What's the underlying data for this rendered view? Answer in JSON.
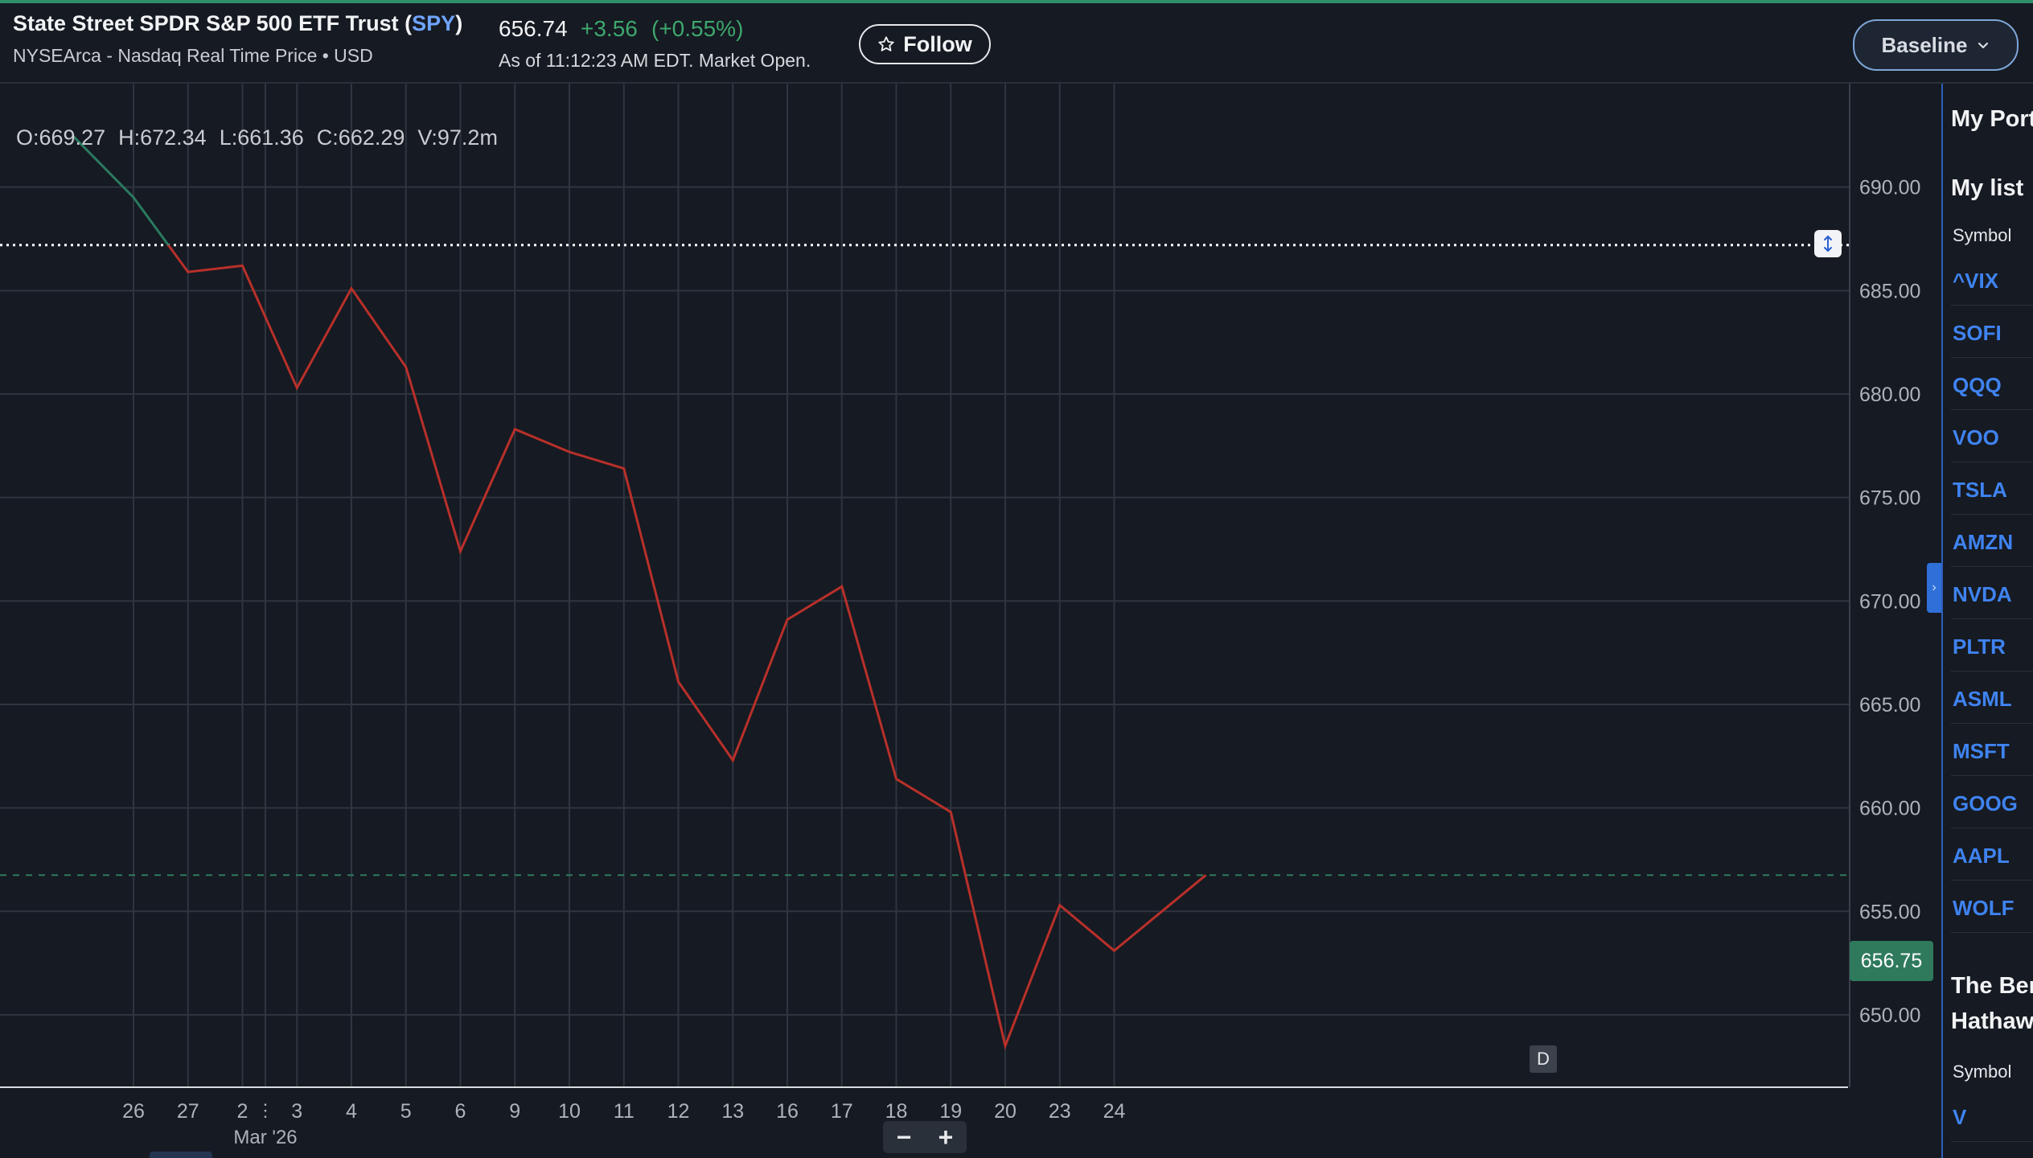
{
  "header": {
    "title_prefix": "State Street SPDR S&P 500 ETF Trust (",
    "symbol": "SPY",
    "title_suffix": ")",
    "subtitle": "NYSEArca - Nasdaq Real Time Price • USD",
    "price": "656.74",
    "change": "+3.56",
    "change_pct": "(+0.55%)",
    "as_of": "As of 11:12:23 AM EDT. Market Open.",
    "follow_label": "Follow",
    "follow_icon": "star-outline-icon",
    "baseline_label": "Baseline",
    "baseline_icon": "chevron-down-icon"
  },
  "ohlc": {
    "o": "O:669.27",
    "h": "H:672.34",
    "l": "L:661.36",
    "c": "C:662.29",
    "v": "V:97.2m"
  },
  "chart": {
    "current_price_label": "656.75",
    "marker_label": "D",
    "zoom_out": "−",
    "zoom_in": "+",
    "month_label": "Mar '26"
  },
  "chart_data": {
    "type": "line",
    "x": [
      "26",
      "27",
      "2",
      "3",
      "4",
      "5",
      "6",
      "9",
      "10",
      "11",
      "12",
      "13",
      "16",
      "17",
      "18",
      "19",
      "20",
      "23",
      "24"
    ],
    "y": [
      689.5,
      685.9,
      686.2,
      680.3,
      685.1,
      681.3,
      672.4,
      678.3,
      677.2,
      676.4,
      666.1,
      662.3,
      669.1,
      670.7,
      661.4,
      659.8,
      648.5,
      655.3,
      653.1
    ],
    "last_point": 656.75,
    "start_point": 692.5,
    "yticks": [
      "690.00",
      "685.00",
      "680.00",
      "675.00",
      "670.00",
      "665.00",
      "660.00",
      "655.00",
      "650.00"
    ],
    "ylim": [
      646.5,
      695.0
    ],
    "baseline": 687.2,
    "current_price": 656.75,
    "colors": {
      "above": "#2b7a5e",
      "below": "#b8302a",
      "grid": "#2f3540",
      "axis_text": "#aeb3bb"
    }
  },
  "sidebar": {
    "portfolio_heading": "My Portfolio",
    "list_heading": "My list",
    "symbol_header": "Symbol",
    "symbols": [
      "^VIX",
      "SOFI",
      "QQQ",
      "VOO",
      "TSLA",
      "AMZN",
      "NVDA",
      "PLTR",
      "ASML",
      "MSFT",
      "GOOG",
      "AAPL",
      "WOLF"
    ],
    "section2_heading_1": "The Berkshire",
    "section2_heading_2": "Hathaway",
    "symbol_header_2": "Symbol",
    "symbols_2": [
      "V"
    ]
  }
}
